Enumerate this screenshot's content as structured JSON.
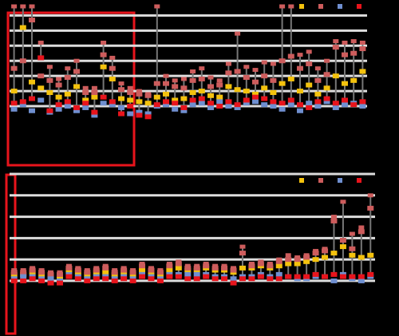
{
  "chart_data": [
    {
      "type": "dot",
      "ylim": [
        -1,
        6.6
      ],
      "yticks": [
        0,
        1,
        2,
        3,
        4,
        5,
        6
      ],
      "grid": true,
      "series": [
        {
          "color": "#f4c20d",
          "values": [
            1,
            5.2,
            1.6,
            1.2,
            0.9,
            0.6,
            0.8,
            1.3,
            0.4,
            0.6,
            2.6,
            1.8,
            0.5,
            0.4,
            0.3,
            0.2,
            0.6,
            0.8,
            0.4,
            0.5,
            0.9,
            1.0,
            0.7,
            0.6,
            1.3,
            1.1,
            1.0,
            0.8,
            1.2,
            0.9,
            1.5,
            1.8,
            1.0,
            1.4,
            0.8,
            1.2,
            2.0,
            1.5,
            1.7,
            2.3
          ]
        },
        {
          "color": "#cd5c5c",
          "values": [
            2.5,
            3.0,
            5.7,
            2.0,
            1.7,
            1.4,
            1.9,
            2.3,
            0.9,
            0.9,
            3.4,
            2.5,
            1.1,
            0.9,
            0.8,
            0.7,
            1.5,
            1.5,
            1.3,
            1.2,
            1.7,
            1.8,
            1.3,
            1.4,
            2.2,
            2.3,
            1.9,
            1.6,
            2.0,
            1.7,
            3.0,
            3.3,
            2.5,
            2.8,
            1.7,
            2.1,
            3.9,
            3.4,
            3.5,
            3.8
          ]
        },
        {
          "color": "#6f8fd0",
          "values": [
            -0.2,
            0.1,
            -0.3,
            0.4,
            -0.4,
            -0.2,
            0,
            -0.3,
            -0.1,
            -0.6,
            0.2,
            0.1,
            -0.1,
            -0.5,
            -0.4,
            -0.5,
            0,
            0.1,
            -0.2,
            -0.3,
            0.1,
            0.2,
            -0.1,
            0.3,
            0,
            -0.1,
            0.2,
            0.3,
            0.1,
            0,
            -0.2,
            0.1,
            -0.3,
            0.2,
            0,
            0.3,
            -0.1,
            0.1,
            0.2,
            0
          ]
        },
        {
          "color": "#e8141c",
          "values": [
            0.2,
            0.3,
            0.5,
            3.2,
            -0.3,
            0.1,
            0.3,
            -0.1,
            0.2,
            -0.4,
            0.6,
            0.3,
            -0.5,
            0,
            -0.6,
            -0.7,
            0.1,
            0.3,
            0.2,
            -0.1,
            0.4,
            0.5,
            0.2,
            0,
            0.3,
            0.1,
            0.4,
            0.6,
            0.5,
            0.3,
            0.2,
            0.4,
            0.1,
            -0.1,
            0.3,
            0.5,
            0.2,
            0.4,
            0.1,
            0.3
          ]
        }
      ],
      "high": [
        6.6,
        6.6,
        6.6,
        4.2,
        2.6,
        1.8,
        2.5,
        3.0,
        1.2,
        1.2,
        4.2,
        3.2,
        1.5,
        1.2,
        1.0,
        0.8,
        6.6,
        2.0,
        1.7,
        1.8,
        2.3,
        2.5,
        1.9,
        1.7,
        2.8,
        4.8,
        2.6,
        2.4,
        2.9,
        2.8,
        6.6,
        6.6,
        3.4,
        3.6,
        2.5,
        3.0,
        4.3,
        4.2,
        4.3,
        4.2
      ]
    },
    {
      "type": "dot",
      "ylim": [
        -0.6,
        5
      ],
      "yticks": [
        0,
        1,
        2,
        3,
        4,
        5
      ],
      "grid": true,
      "series": [
        {
          "color": "#f4c20d",
          "values": [
            0.3,
            0.3,
            0.4,
            0.3,
            0.2,
            0.2,
            0.5,
            0.4,
            0.3,
            0.4,
            0.4,
            0.3,
            0.4,
            0.3,
            0.5,
            0.4,
            0.3,
            0.5,
            0.6,
            0.5,
            0.5,
            0.6,
            0.5,
            0.5,
            0.4,
            0.6,
            0.6,
            0.7,
            0.6,
            0.7,
            0.8,
            0.8,
            0.9,
            1.0,
            1.1,
            1.3,
            1.6,
            1.2,
            1.1,
            1.2
          ]
        },
        {
          "color": "#cd5c5c",
          "values": [
            0.4,
            0.4,
            0.5,
            0.4,
            0.3,
            0.3,
            0.6,
            0.5,
            0.4,
            0.5,
            0.6,
            0.4,
            0.5,
            0.4,
            0.7,
            0.5,
            0.4,
            0.7,
            0.8,
            0.6,
            0.6,
            0.7,
            0.6,
            0.6,
            0.5,
            1.3,
            0.7,
            0.8,
            0.7,
            0.9,
            1.0,
            1.0,
            1.1,
            1.3,
            1.4,
            2.8,
            1.9,
            1.5,
            2.3,
            3.4
          ]
        },
        {
          "color": "#6f8fd0",
          "values": [
            0.1,
            0.2,
            0.2,
            0.1,
            0.1,
            0,
            0.3,
            0.2,
            0.1,
            0.2,
            0.2,
            0.1,
            0.2,
            0.1,
            0.3,
            0.2,
            0.1,
            0.3,
            0.3,
            0.3,
            0.3,
            0.3,
            0.2,
            0.2,
            0.1,
            0.2,
            0.2,
            0.3,
            0.2,
            0.3,
            0.2,
            0.1,
            0.1,
            0.2,
            0.2,
            0,
            0.3,
            0.1,
            0,
            0.2
          ]
        },
        {
          "color": "#e8141c",
          "values": [
            0,
            0,
            0.1,
            0,
            -0.1,
            -0.1,
            0.2,
            0.1,
            0,
            0.1,
            0.1,
            0,
            0.1,
            0,
            0.2,
            0.1,
            0,
            0.2,
            0.2,
            0.1,
            0.1,
            0.2,
            0.1,
            0.1,
            -0.1,
            0.1,
            0.1,
            0.2,
            0.1,
            0.1,
            0.2,
            0.2,
            0.2,
            0.3,
            0.2,
            0.3,
            0.2,
            0.2,
            0.2,
            0.3
          ]
        }
      ],
      "high": [
        0.5,
        0.5,
        0.6,
        0.5,
        0.4,
        0.4,
        0.7,
        0.6,
        0.5,
        0.6,
        0.7,
        0.5,
        0.6,
        0.5,
        0.8,
        0.6,
        0.5,
        0.8,
        0.9,
        0.7,
        0.7,
        0.8,
        0.7,
        0.7,
        0.6,
        1.6,
        0.8,
        0.9,
        0.8,
        1.0,
        1.2,
        1.1,
        1.2,
        1.4,
        1.5,
        3.0,
        3.7,
        2.2,
        2.5,
        4.0
      ]
    }
  ]
}
